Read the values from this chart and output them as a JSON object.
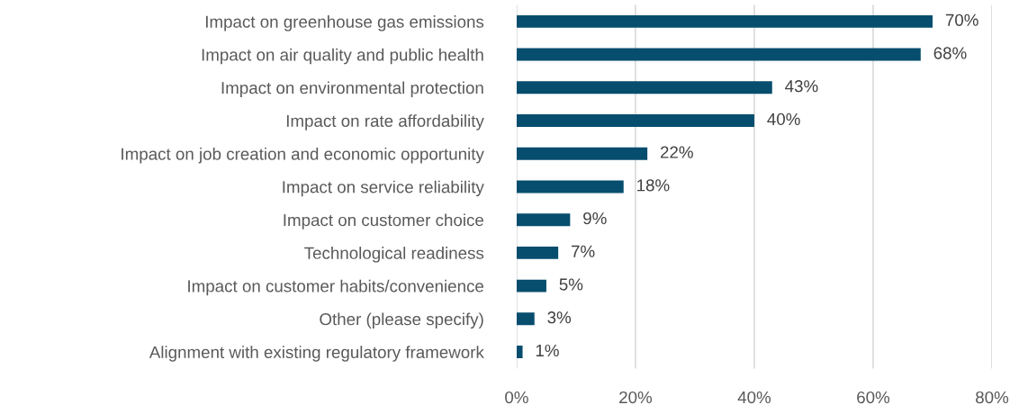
{
  "chart_data": {
    "type": "bar",
    "orientation": "horizontal",
    "categories": [
      "Impact on greenhouse gas emissions",
      "Impact on air quality and public health",
      "Impact on environmental protection",
      "Impact on rate affordability",
      "Impact on job creation and economic opportunity",
      "Impact on service reliability",
      "Impact on customer choice",
      "Technological readiness",
      "Impact on customer habits/convenience",
      "Other (please specify)",
      "Alignment with existing regulatory framework"
    ],
    "values": [
      70,
      68,
      43,
      40,
      22,
      18,
      9,
      7,
      5,
      3,
      1
    ],
    "value_labels": [
      "70%",
      "68%",
      "43%",
      "40%",
      "22%",
      "18%",
      "9%",
      "7%",
      "5%",
      "3%",
      "1%"
    ],
    "color": "#064d6e",
    "xlim": [
      0,
      80
    ],
    "xticks": [
      {
        "value": 0,
        "label": "0%"
      },
      {
        "value": 20,
        "label": "20%"
      },
      {
        "value": 40,
        "label": "40%"
      },
      {
        "value": 60,
        "label": "60%"
      },
      {
        "value": 80,
        "label": "80%"
      }
    ],
    "grid": "x"
  }
}
